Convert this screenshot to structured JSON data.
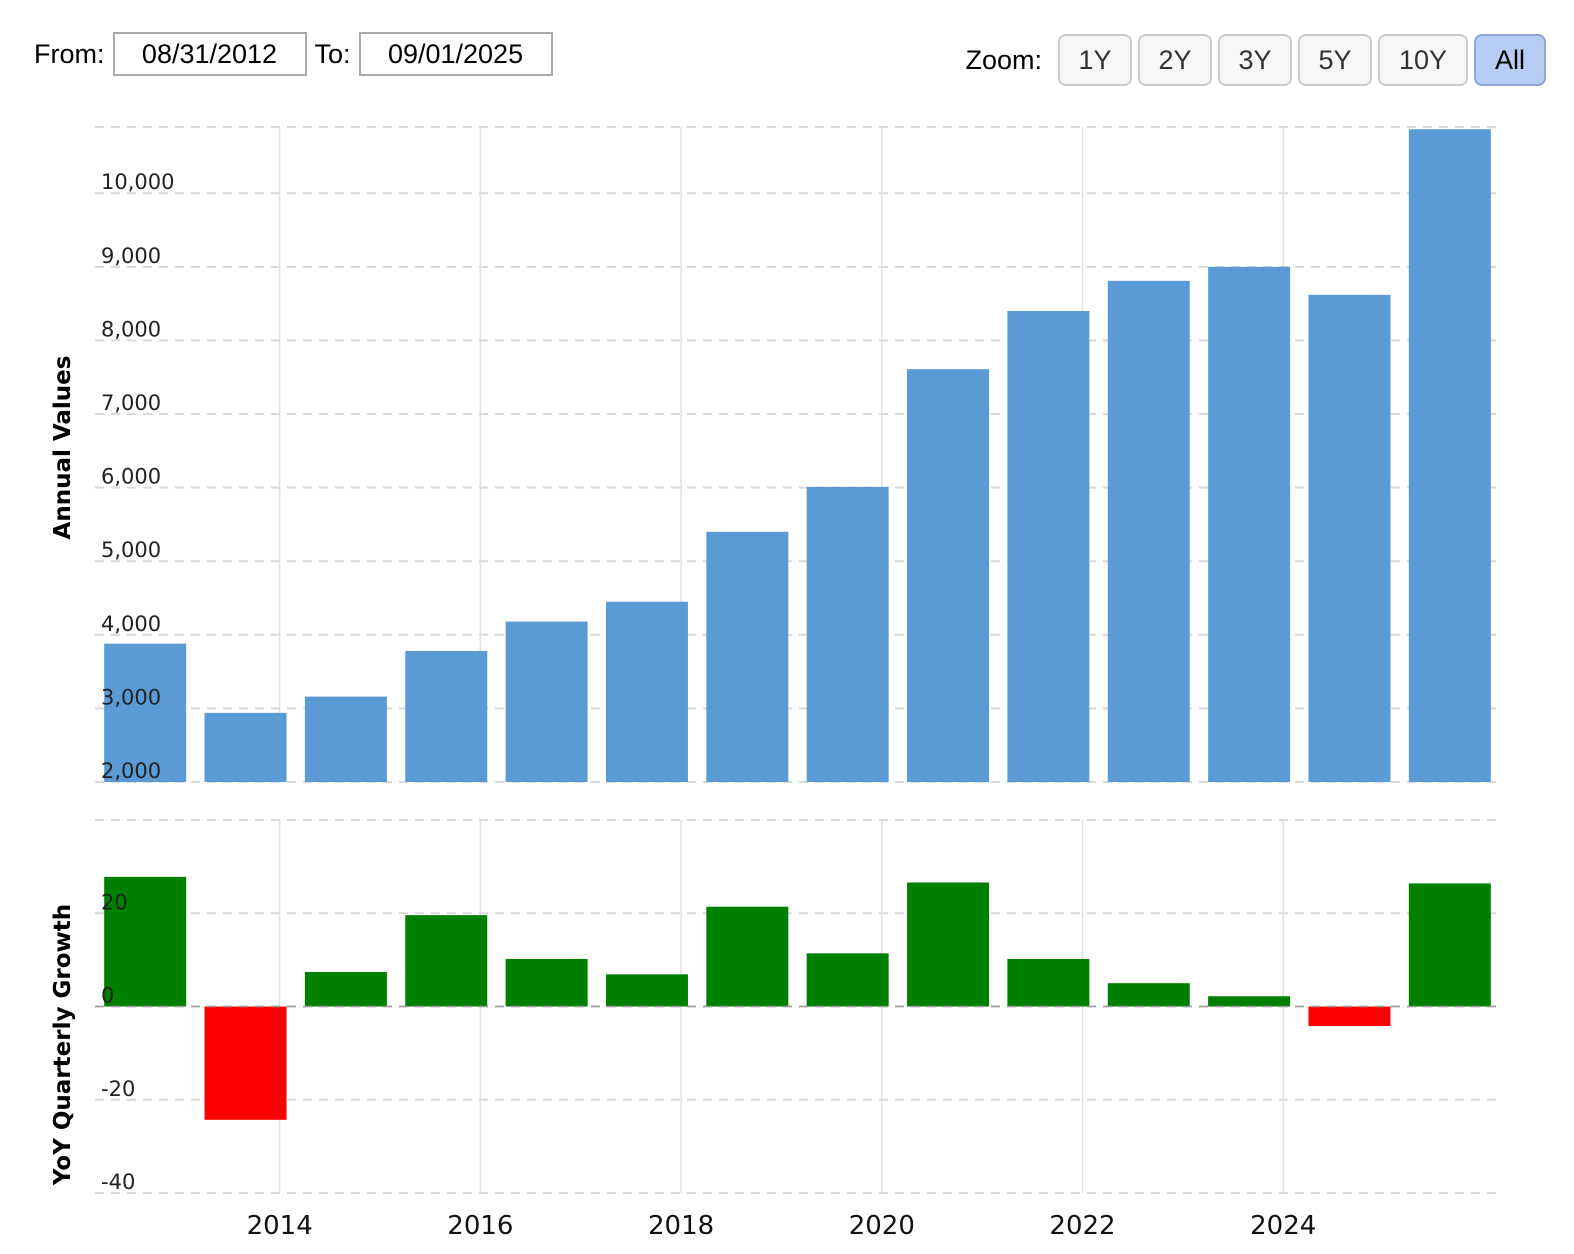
{
  "range": {
    "from_label": "From:",
    "from_value": "08/31/2012",
    "to_label": "To:",
    "to_value": "09/01/2025"
  },
  "zoom": {
    "label": "Zoom:",
    "buttons": [
      "1Y",
      "2Y",
      "3Y",
      "5Y",
      "10Y",
      "All"
    ],
    "active": "All"
  },
  "colors": {
    "annual_bar": "#5b9bd5",
    "growth_positive": "#008000",
    "growth_negative": "#ff0000",
    "grid": "#d9d9d9"
  },
  "chart_data": [
    {
      "type": "bar",
      "ylabel": "Annual Values",
      "ylim": [
        2000,
        10900
      ],
      "yticks": [
        "2,000",
        "3,000",
        "4,000",
        "5,000",
        "6,000",
        "7,000",
        "8,000",
        "9,000",
        "10,000"
      ],
      "ytick_values": [
        2000,
        3000,
        4000,
        5000,
        6000,
        7000,
        8000,
        9000,
        10000
      ],
      "x": [
        2012.66,
        2013.66,
        2014.66,
        2015.66,
        2016.66,
        2017.66,
        2018.66,
        2019.66,
        2020.66,
        2021.66,
        2022.66,
        2023.66,
        2024.66,
        2025.66
      ],
      "values": [
        3880,
        2940,
        3160,
        3780,
        4180,
        4450,
        5400,
        6010,
        7610,
        8400,
        8810,
        9000,
        8620,
        10870
      ],
      "grid": true
    },
    {
      "type": "bar",
      "ylabel": "YoY Quarterly Growth",
      "ylim": [
        -40,
        40
      ],
      "yticks": [
        "-40",
        "-20",
        "0",
        "20"
      ],
      "ytick_values": [
        -40,
        -20,
        0,
        20
      ],
      "x": [
        2012.66,
        2013.66,
        2014.66,
        2015.66,
        2016.66,
        2017.66,
        2018.66,
        2019.66,
        2020.66,
        2021.66,
        2022.66,
        2023.66,
        2024.66,
        2025.66
      ],
      "values": [
        27.8,
        -24.3,
        7.4,
        19.6,
        10.2,
        6.9,
        21.4,
        11.4,
        26.6,
        10.2,
        5.0,
        2.2,
        -4.2,
        26.4
      ],
      "grid": true
    }
  ],
  "x_axis": {
    "ticks": [
      "2014",
      "2016",
      "2018",
      "2020",
      "2022",
      "2024"
    ],
    "tick_values": [
      2014,
      2016,
      2018,
      2020,
      2022,
      2024
    ]
  }
}
